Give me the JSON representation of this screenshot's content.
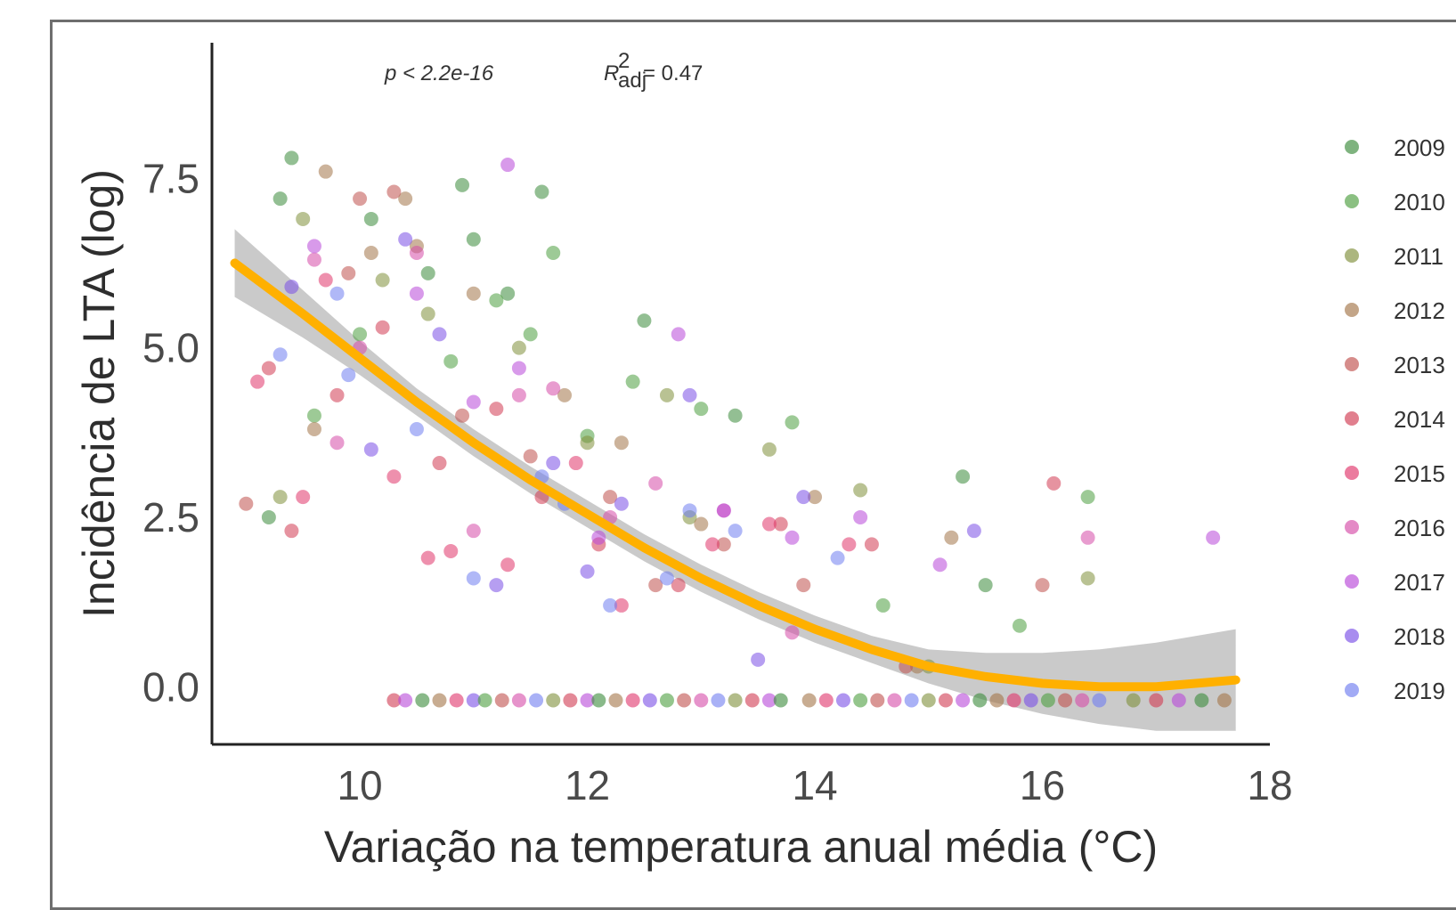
{
  "chart_data": {
    "type": "scatter",
    "title": "",
    "xlabel": "Variação na temperatura anual média (°C)",
    "ylabel": "Incidência de LTA (log)",
    "xlim": [
      8.7,
      18.0
    ],
    "ylim": [
      -0.85,
      9.5
    ],
    "x_ticks": [
      "10",
      "12",
      "14",
      "16",
      "18"
    ],
    "x_tick_values": [
      10,
      12,
      14,
      16,
      18
    ],
    "y_ticks": [
      "0.0",
      "2.5",
      "5.0",
      "7.5"
    ],
    "y_tick_values": [
      0,
      2.5,
      5,
      7.5
    ],
    "grid": false,
    "legend_position": "right",
    "annotations": {
      "p_value": "p < 2.2e-16",
      "r2_label": "R",
      "r2_super": "2",
      "r2_sub": "adj",
      "r2_value": "= 0.47"
    },
    "fit": {
      "color": "#ffb000",
      "band_color": "#b8b8b8",
      "x": [
        8.9,
        9.5,
        10.0,
        10.5,
        11.0,
        11.5,
        12.0,
        12.5,
        13.0,
        13.5,
        14.0,
        14.5,
        15.0,
        15.5,
        16.0,
        16.5,
        17.0,
        17.7
      ],
      "y": [
        6.25,
        5.5,
        4.85,
        4.2,
        3.6,
        3.05,
        2.55,
        2.05,
        1.6,
        1.2,
        0.85,
        0.55,
        0.3,
        0.15,
        0.05,
        0.0,
        0.0,
        0.1
      ],
      "band_half_width": [
        0.5,
        0.35,
        0.25,
        0.2,
        0.2,
        0.2,
        0.2,
        0.2,
        0.2,
        0.2,
        0.2,
        0.2,
        0.25,
        0.35,
        0.45,
        0.55,
        0.65,
        0.75
      ]
    },
    "series": [
      {
        "name": "2009",
        "color": "#3a8a3a",
        "x": [
          9.4,
          9.3,
          10.1,
          10.6,
          11.0,
          11.3,
          12.5,
          13.3,
          15.3,
          15.5,
          9.2,
          10.9,
          11.6
        ],
        "y": [
          7.8,
          7.2,
          6.9,
          6.1,
          6.6,
          5.8,
          5.4,
          4.0,
          3.1,
          1.5,
          2.5,
          7.4,
          7.3
        ]
      },
      {
        "name": "2010",
        "color": "#4d9e3f",
        "x": [
          9.6,
          10.0,
          10.8,
          11.2,
          11.5,
          12.0,
          12.4,
          13.0,
          13.8,
          14.6,
          15.8,
          16.4,
          11.7
        ],
        "y": [
          4.0,
          5.2,
          4.8,
          5.7,
          5.2,
          3.7,
          4.5,
          4.1,
          3.9,
          1.2,
          0.9,
          2.8,
          6.4
        ]
      },
      {
        "name": "2011",
        "color": "#7f8f3a",
        "x": [
          9.5,
          10.2,
          10.6,
          11.4,
          12.0,
          12.9,
          13.6,
          14.4,
          15.0,
          16.4,
          9.3,
          12.7
        ],
        "y": [
          6.9,
          6.0,
          5.5,
          5.0,
          3.6,
          2.5,
          3.5,
          2.9,
          0.3,
          1.6,
          2.8,
          4.3
        ]
      },
      {
        "name": "2012",
        "color": "#a37448",
        "x": [
          9.7,
          10.1,
          10.4,
          11.0,
          11.8,
          12.3,
          13.0,
          14.0,
          14.9,
          15.2,
          9.6,
          10.5
        ],
        "y": [
          7.6,
          6.4,
          7.2,
          5.8,
          4.3,
          3.6,
          2.4,
          2.8,
          0.3,
          2.2,
          3.8,
          6.5
        ]
      },
      {
        "name": "2013",
        "color": "#c0504d",
        "x": [
          9.0,
          9.9,
          10.3,
          10.9,
          11.5,
          12.2,
          12.6,
          13.2,
          13.9,
          14.8,
          16.0,
          10.0
        ],
        "y": [
          2.7,
          6.1,
          7.3,
          4.0,
          3.4,
          2.8,
          1.5,
          2.1,
          1.5,
          0.3,
          1.5,
          7.2
        ]
      },
      {
        "name": "2014",
        "color": "#d13b52",
        "x": [
          9.2,
          9.8,
          10.2,
          10.7,
          11.2,
          11.6,
          12.1,
          12.8,
          13.7,
          14.5,
          16.1,
          9.4
        ],
        "y": [
          4.7,
          4.3,
          5.3,
          3.3,
          4.1,
          2.8,
          2.1,
          1.5,
          2.4,
          2.1,
          3.0,
          2.3
        ]
      },
      {
        "name": "2015",
        "color": "#e0346a",
        "x": [
          9.1,
          9.7,
          10.3,
          10.8,
          11.3,
          11.9,
          12.3,
          13.1,
          13.6,
          14.3,
          9.5,
          10.6
        ],
        "y": [
          4.5,
          6.0,
          3.1,
          2.0,
          1.8,
          3.3,
          1.2,
          2.1,
          2.4,
          2.1,
          2.8,
          1.9
        ]
      },
      {
        "name": "2016",
        "color": "#d64ba8",
        "x": [
          9.6,
          10.0,
          10.5,
          11.0,
          11.4,
          12.2,
          12.6,
          13.2,
          13.8,
          16.4,
          9.8,
          11.7
        ],
        "y": [
          6.3,
          5.0,
          6.4,
          2.3,
          4.3,
          2.5,
          3.0,
          2.6,
          0.8,
          2.2,
          3.6,
          4.4
        ]
      },
      {
        "name": "2017",
        "color": "#b847d8",
        "x": [
          9.6,
          10.5,
          11.3,
          11.4,
          12.1,
          12.8,
          13.2,
          13.8,
          14.4,
          15.1,
          17.5,
          11.0
        ],
        "y": [
          6.5,
          5.8,
          7.7,
          4.7,
          2.2,
          5.2,
          2.6,
          2.2,
          2.5,
          1.8,
          2.2,
          4.2
        ]
      },
      {
        "name": "2018",
        "color": "#7a4fe6",
        "x": [
          9.4,
          10.1,
          10.7,
          11.2,
          11.7,
          12.3,
          12.9,
          13.5,
          13.9,
          15.4,
          10.4,
          12.0
        ],
        "y": [
          5.9,
          3.5,
          5.2,
          1.5,
          3.3,
          2.7,
          4.3,
          0.4,
          2.8,
          2.3,
          6.6,
          1.7
        ]
      },
      {
        "name": "2019",
        "color": "#6f7df0",
        "x": [
          9.3,
          9.9,
          10.5,
          11.0,
          11.6,
          12.2,
          12.7,
          13.3,
          14.2,
          9.8,
          11.8,
          12.9
        ],
        "y": [
          4.9,
          4.6,
          3.8,
          1.6,
          3.1,
          1.2,
          1.6,
          2.3,
          1.9,
          5.8,
          2.7,
          2.6
        ]
      }
    ],
    "zero_row": {
      "y": -0.2,
      "x": [
        10.3,
        10.4,
        10.55,
        10.7,
        10.85,
        11.0,
        11.1,
        11.25,
        11.4,
        11.55,
        11.7,
        11.85,
        12.0,
        12.1,
        12.25,
        12.4,
        12.55,
        12.7,
        12.85,
        13.0,
        13.15,
        13.3,
        13.45,
        13.6,
        13.7,
        13.95,
        14.1,
        14.25,
        14.4,
        14.55,
        14.7,
        14.85,
        15.0,
        15.15,
        15.3,
        15.45,
        15.6,
        15.75,
        15.9,
        16.05,
        16.2,
        16.35,
        16.5,
        16.8,
        17.0,
        17.2,
        17.4,
        17.6
      ]
    }
  }
}
